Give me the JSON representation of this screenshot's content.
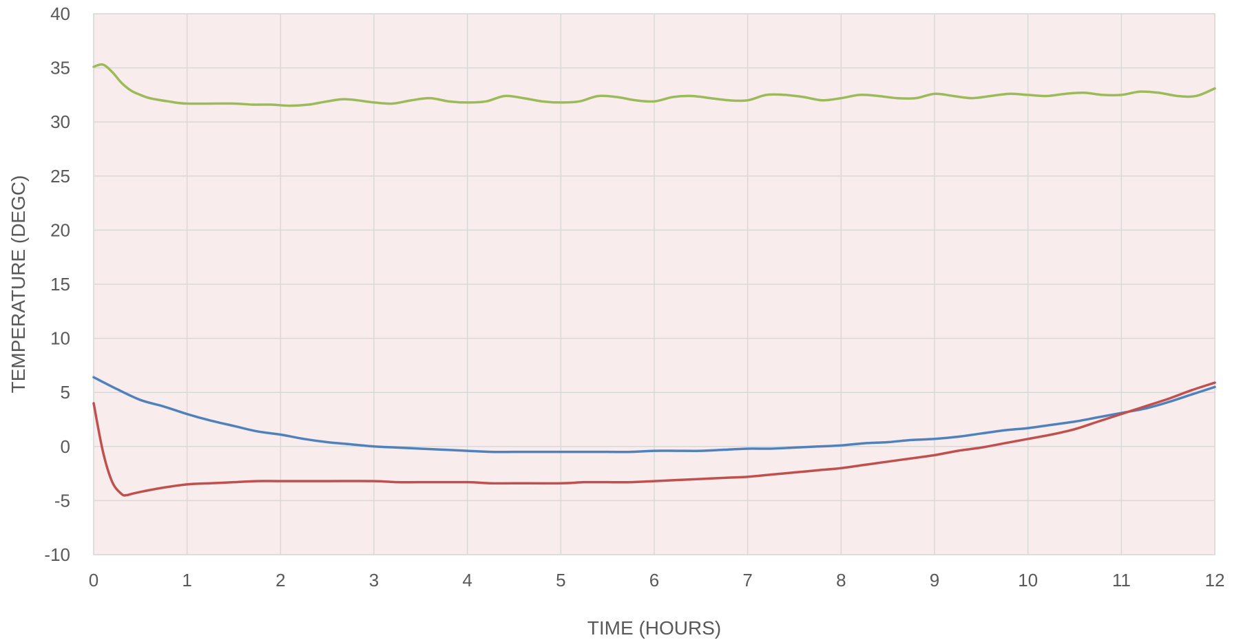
{
  "chart_data": {
    "type": "line",
    "title": "",
    "xlabel": "TIME (HOURS)",
    "ylabel": "TEMPERATURE (DEGC)",
    "xlim": [
      0,
      12
    ],
    "ylim": [
      -10,
      40
    ],
    "x_ticks": [
      0,
      1,
      2,
      3,
      4,
      5,
      6,
      7,
      8,
      9,
      10,
      11,
      12
    ],
    "y_ticks": [
      -10,
      -5,
      0,
      5,
      10,
      15,
      20,
      25,
      30,
      35,
      40
    ],
    "grid": true,
    "legend": "none",
    "plot_background": "#f9ecec",
    "grid_color": "#d9d9d9",
    "series": [
      {
        "color": "#9bbb59",
        "x": [
          0,
          0.1,
          0.2,
          0.3,
          0.4,
          0.5,
          0.6,
          0.8,
          1,
          1.5,
          1.7,
          1.9,
          2.1,
          2.3,
          2.5,
          2.7,
          3,
          3.2,
          3.4,
          3.6,
          3.8,
          4,
          4.2,
          4.4,
          4.6,
          4.8,
          5,
          5.2,
          5.4,
          5.6,
          5.8,
          6,
          6.2,
          6.4,
          6.6,
          6.8,
          7,
          7.2,
          7.4,
          7.6,
          7.8,
          8,
          8.2,
          8.4,
          8.6,
          8.8,
          9,
          9.2,
          9.4,
          9.6,
          9.8,
          10,
          10.2,
          10.4,
          10.6,
          10.8,
          11,
          11.2,
          11.4,
          11.6,
          11.8,
          12
        ],
        "y": [
          35.1,
          35.3,
          34.6,
          33.6,
          32.9,
          32.5,
          32.2,
          31.9,
          31.7,
          31.7,
          31.6,
          31.6,
          31.5,
          31.6,
          31.9,
          32.1,
          31.8,
          31.7,
          32.0,
          32.2,
          31.9,
          31.8,
          31.9,
          32.4,
          32.2,
          31.9,
          31.8,
          31.9,
          32.4,
          32.3,
          32.0,
          31.9,
          32.3,
          32.4,
          32.2,
          32.0,
          32.0,
          32.5,
          32.5,
          32.3,
          32.0,
          32.2,
          32.5,
          32.4,
          32.2,
          32.2,
          32.6,
          32.4,
          32.2,
          32.4,
          32.6,
          32.5,
          32.4,
          32.6,
          32.7,
          32.5,
          32.5,
          32.8,
          32.7,
          32.4,
          32.4,
          33.1
        ]
      },
      {
        "color": "#4f81bd",
        "x": [
          0,
          0.25,
          0.5,
          0.75,
          1,
          1.25,
          1.5,
          1.75,
          2,
          2.25,
          2.5,
          2.75,
          3,
          3.25,
          3.5,
          3.75,
          4,
          4.25,
          4.5,
          4.75,
          5,
          5.25,
          5.5,
          5.75,
          6,
          6.25,
          6.5,
          6.75,
          7,
          7.25,
          7.5,
          7.75,
          8,
          8.25,
          8.5,
          8.75,
          9,
          9.25,
          9.5,
          9.75,
          10,
          10.25,
          10.5,
          10.75,
          11,
          11.25,
          11.5,
          11.75,
          12
        ],
        "y": [
          6.4,
          5.3,
          4.3,
          3.7,
          3.0,
          2.4,
          1.9,
          1.4,
          1.1,
          0.7,
          0.4,
          0.2,
          0.0,
          -0.1,
          -0.2,
          -0.3,
          -0.4,
          -0.5,
          -0.5,
          -0.5,
          -0.5,
          -0.5,
          -0.5,
          -0.5,
          -0.4,
          -0.4,
          -0.4,
          -0.3,
          -0.2,
          -0.2,
          -0.1,
          0.0,
          0.1,
          0.3,
          0.4,
          0.6,
          0.7,
          0.9,
          1.2,
          1.5,
          1.7,
          2.0,
          2.3,
          2.7,
          3.1,
          3.5,
          4.1,
          4.8,
          5.5
        ]
      },
      {
        "color": "#c0504d",
        "x": [
          0,
          0.1,
          0.2,
          0.3,
          0.35,
          0.4,
          0.5,
          0.75,
          1,
          1.25,
          1.5,
          1.75,
          2,
          2.5,
          3,
          3.25,
          3.5,
          4,
          4.25,
          4.5,
          5,
          5.25,
          5.5,
          5.75,
          6,
          6.25,
          6.5,
          6.75,
          7,
          7.25,
          7.5,
          7.75,
          8,
          8.25,
          8.5,
          8.75,
          9,
          9.25,
          9.5,
          9.75,
          10,
          10.25,
          10.5,
          10.75,
          11,
          11.25,
          11.5,
          11.75,
          12
        ],
        "y": [
          4.0,
          -0.5,
          -3.3,
          -4.4,
          -4.5,
          -4.4,
          -4.2,
          -3.8,
          -3.5,
          -3.4,
          -3.3,
          -3.2,
          -3.2,
          -3.2,
          -3.2,
          -3.3,
          -3.3,
          -3.3,
          -3.4,
          -3.4,
          -3.4,
          -3.3,
          -3.3,
          -3.3,
          -3.2,
          -3.1,
          -3.0,
          -2.9,
          -2.8,
          -2.6,
          -2.4,
          -2.2,
          -2.0,
          -1.7,
          -1.4,
          -1.1,
          -0.8,
          -0.4,
          -0.1,
          0.3,
          0.7,
          1.1,
          1.6,
          2.3,
          3.0,
          3.7,
          4.4,
          5.2,
          5.9
        ]
      }
    ]
  }
}
